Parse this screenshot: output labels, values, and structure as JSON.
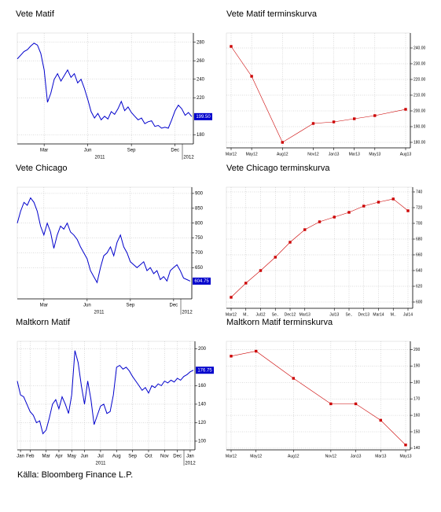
{
  "chart_data": [
    {
      "type": "line",
      "title": "Vete Matif",
      "color": "#0000cc",
      "markers": false,
      "grid": true,
      "categories": [
        null,
        null,
        null,
        null,
        null,
        null,
        null,
        null,
        "Mar",
        null,
        null,
        null,
        null,
        null,
        null,
        null,
        null,
        null,
        null,
        null,
        null,
        "Jun",
        null,
        null,
        null,
        null,
        null,
        null,
        null,
        null,
        null,
        null,
        null,
        null,
        "Sep",
        null,
        null,
        null,
        null,
        null,
        null,
        null,
        null,
        null,
        null,
        null,
        null,
        "Dec",
        null,
        null,
        null,
        null,
        null
      ],
      "values": [
        262,
        266,
        270,
        272,
        276,
        279,
        277,
        268,
        250,
        215,
        225,
        240,
        246,
        238,
        244,
        250,
        242,
        246,
        236,
        240,
        230,
        218,
        205,
        198,
        203,
        196,
        200,
        197,
        205,
        202,
        208,
        216,
        206,
        210,
        204,
        200,
        196,
        198,
        192,
        194,
        195,
        189,
        190,
        187,
        188,
        187,
        196,
        206,
        212,
        208,
        201,
        204,
        199.5
      ],
      "value_labels": [
        null,
        null,
        null,
        null,
        null,
        null,
        null,
        null,
        null,
        null,
        null,
        null,
        null,
        null,
        null,
        null,
        null,
        null,
        null,
        null,
        null,
        null,
        null,
        null,
        null,
        null,
        null,
        null,
        null,
        null,
        null,
        null,
        null,
        null,
        null,
        null,
        null,
        null,
        null,
        null,
        null,
        null,
        null,
        null,
        null,
        null,
        null,
        null,
        null,
        null,
        null,
        null,
        "199.50"
      ],
      "years": [
        "2011",
        "2012"
      ],
      "ylim": [
        170,
        290
      ],
      "yticks": [
        180,
        220,
        240,
        260,
        280
      ]
    },
    {
      "type": "line",
      "title": "Vete Matif terminskurva",
      "color": "#cc0000",
      "markers": true,
      "grid": true,
      "categories": [
        "Mar12",
        "May12",
        "Aug12",
        "Nov12",
        "Jan13",
        "Mar13",
        "May13",
        "Aug13"
      ],
      "values": [
        241,
        222,
        180,
        192,
        193,
        195,
        197,
        201
      ],
      "ylim": [
        176.5,
        249.5
      ],
      "yticks": [
        {
          "value": 180,
          "label": "180.00"
        },
        {
          "value": 190,
          "label": "190.00"
        },
        {
          "value": 200,
          "label": "200.00"
        },
        {
          "value": 210,
          "label": "210.00"
        },
        {
          "value": 220,
          "label": "220.00"
        },
        {
          "value": 230,
          "label": "230.00"
        },
        {
          "value": 240,
          "label": "240.00"
        }
      ]
    },
    {
      "type": "line",
      "title": "Vete Chicago",
      "color": "#0000cc",
      "markers": false,
      "grid": true,
      "categories": [
        null,
        null,
        null,
        null,
        null,
        null,
        null,
        null,
        "Mar",
        null,
        null,
        null,
        null,
        null,
        null,
        null,
        null,
        null,
        null,
        null,
        null,
        "Jun",
        null,
        null,
        null,
        null,
        null,
        null,
        null,
        null,
        null,
        null,
        null,
        null,
        "Sep",
        null,
        null,
        null,
        null,
        null,
        null,
        null,
        null,
        null,
        null,
        null,
        null,
        "Dec",
        null,
        null,
        null,
        null,
        null
      ],
      "values": [
        800,
        840,
        870,
        860,
        885,
        870,
        840,
        790,
        760,
        800,
        770,
        715,
        760,
        790,
        780,
        800,
        770,
        760,
        745,
        720,
        700,
        680,
        640,
        620,
        600,
        650,
        690,
        700,
        720,
        690,
        735,
        760,
        720,
        700,
        670,
        660,
        650,
        660,
        670,
        640,
        650,
        630,
        640,
        610,
        620,
        605,
        640,
        650,
        660,
        640,
        615,
        610,
        604.75
      ],
      "value_labels": [
        null,
        null,
        null,
        null,
        null,
        null,
        null,
        null,
        null,
        null,
        null,
        null,
        null,
        null,
        null,
        null,
        null,
        null,
        null,
        null,
        null,
        null,
        null,
        null,
        null,
        null,
        null,
        null,
        null,
        null,
        null,
        null,
        null,
        null,
        null,
        null,
        null,
        null,
        null,
        null,
        null,
        null,
        null,
        null,
        null,
        null,
        null,
        null,
        null,
        null,
        null,
        null,
        "604.75"
      ],
      "years": [
        "2011",
        "2012"
      ],
      "ylim": [
        545,
        921
      ],
      "yticks": [
        650,
        700,
        750,
        800,
        850,
        900
      ]
    },
    {
      "type": "line",
      "title": "Vete Chicago terminskurva",
      "color": "#cc0000",
      "markers": true,
      "grid": true,
      "categories": [
        "Mar12",
        "M..",
        "Jul12",
        "Se..",
        "Dec12",
        "Mar13",
        null,
        "Jul13",
        "Se..",
        "Dec13",
        "Mar14",
        "M..",
        "Jul14"
      ],
      "values": [
        606,
        624,
        640,
        657,
        676,
        692,
        702,
        708,
        714,
        722,
        727,
        731,
        716
      ],
      "ylim": [
        592,
        746
      ],
      "yticks": [
        600,
        620,
        640,
        660,
        680,
        700,
        720,
        740
      ]
    },
    {
      "type": "line",
      "title": "Maltkorn Matif",
      "color": "#0000cc",
      "markers": false,
      "grid": true,
      "categories": [
        null,
        "Jan",
        null,
        null,
        "Feb",
        null,
        null,
        null,
        null,
        "Mar",
        null,
        null,
        null,
        "Apr",
        null,
        null,
        null,
        "May",
        null,
        null,
        null,
        "Jun",
        null,
        null,
        null,
        null,
        "Jul",
        null,
        null,
        null,
        null,
        "Aug",
        null,
        null,
        null,
        null,
        "Sep",
        null,
        null,
        null,
        null,
        "Oct",
        null,
        null,
        null,
        null,
        "Nov",
        null,
        null,
        null,
        "Dec",
        null,
        null,
        null,
        "Jan",
        null
      ],
      "values": [
        165,
        150,
        148,
        140,
        132,
        128,
        120,
        122,
        108,
        112,
        125,
        140,
        145,
        135,
        148,
        140,
        130,
        150,
        198,
        185,
        160,
        140,
        165,
        145,
        118,
        128,
        138,
        140,
        130,
        132,
        150,
        180,
        182,
        178,
        180,
        176,
        170,
        165,
        160,
        155,
        158,
        152,
        160,
        158,
        162,
        160,
        165,
        163,
        166,
        164,
        168,
        166,
        170,
        172,
        175,
        176.75
      ],
      "value_labels": [
        null,
        null,
        null,
        null,
        null,
        null,
        null,
        null,
        null,
        null,
        null,
        null,
        null,
        null,
        null,
        null,
        null,
        null,
        null,
        null,
        null,
        null,
        null,
        null,
        null,
        null,
        null,
        null,
        null,
        null,
        null,
        null,
        null,
        null,
        null,
        null,
        null,
        null,
        null,
        null,
        null,
        null,
        null,
        null,
        null,
        null,
        null,
        null,
        null,
        null,
        null,
        null,
        null,
        null,
        null,
        "176.75"
      ],
      "years": [
        "2011",
        "2012"
      ],
      "ylim": [
        90.6,
        208
      ],
      "yticks": [
        100,
        120,
        140,
        160,
        200
      ]
    },
    {
      "type": "line",
      "title": "Maltkorn Matif terminskurva",
      "color": "#cc0000",
      "markers": true,
      "grid": true,
      "categories": [
        "Mar12",
        "May12",
        "Aug12",
        "Nov12",
        "Jan13",
        "Mar13",
        "May13"
      ],
      "values": [
        196,
        199,
        182.5,
        167,
        167,
        157,
        142
      ],
      "ylim": [
        139,
        205
      ],
      "yticks": [
        140,
        150,
        160,
        170,
        180,
        190,
        200
      ]
    }
  ],
  "source": "Källa: Bloomberg Finance L.P."
}
